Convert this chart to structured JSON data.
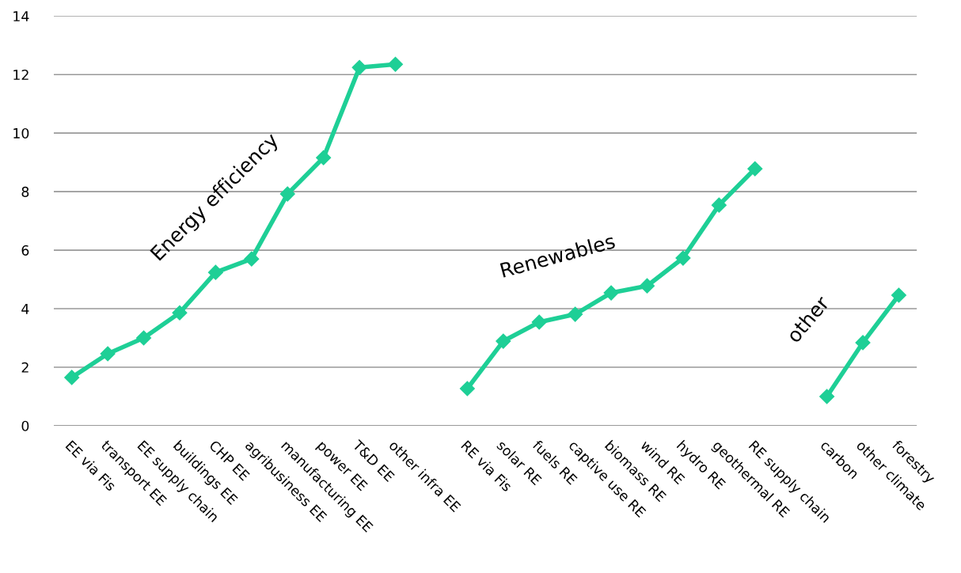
{
  "chart_data": {
    "type": "line",
    "categories": [
      "EE via Fis",
      "transport EE",
      "EE supply chain",
      "buildings EE",
      "CHP EE",
      "agribusiness EE",
      "manufacturing EE",
      "power EE",
      "T&D EE",
      "other infra EE",
      null,
      "RE via Fis",
      "solar RE",
      "fuels RE",
      "captive use RE",
      "biomass RE",
      "wind RE",
      "hydro RE",
      "geothermal RE",
      "RE supply chain",
      null,
      "carbon",
      "other climate",
      "forestry"
    ],
    "series": [
      {
        "color": "#1ecf96",
        "values": [
          1.65,
          2.46,
          3.0,
          3.86,
          5.24,
          5.7,
          7.92,
          9.16,
          12.24,
          12.35,
          null,
          1.27,
          2.89,
          3.54,
          3.81,
          4.54,
          4.78,
          5.73,
          7.54,
          8.78,
          null,
          1.0,
          2.84,
          4.46
        ]
      }
    ],
    "ylim": [
      0,
      14
    ],
    "yticks": [
      0,
      2,
      4,
      6,
      8,
      10,
      12,
      14
    ],
    "grid": "y",
    "legend": false,
    "marker": "diamond",
    "line_style": "solid",
    "annotations": [
      "Energy efficiency",
      "Renewables",
      "other"
    ]
  }
}
